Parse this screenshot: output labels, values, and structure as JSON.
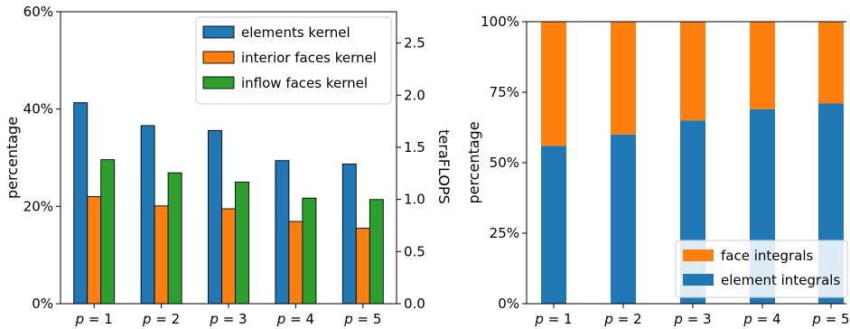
{
  "chart_data": [
    {
      "type": "bar",
      "categories": [
        "p = 1",
        "p = 2",
        "p = 3",
        "p = 4",
        "p = 5"
      ],
      "ylabel": "percentage",
      "ylim": [
        0,
        60
      ],
      "yticks": [
        "0%",
        "20%",
        "40%",
        "60%"
      ],
      "y2label": "teraFLOPS",
      "y2lim": [
        0.0,
        2.8
      ],
      "y2ticks": [
        "0.0",
        "0.5",
        "1.0",
        "1.5",
        "2.0",
        "2.5"
      ],
      "legend_position": "top-right",
      "series": [
        {
          "name": "elements kernel",
          "color": "#1f77b4",
          "values": [
            41.3,
            36.6,
            35.6,
            29.4,
            28.7
          ]
        },
        {
          "name": "interior faces kernel",
          "color": "#ff7f0e",
          "values": [
            22.0,
            20.1,
            19.5,
            16.9,
            15.5
          ]
        },
        {
          "name": "inflow faces kernel",
          "color": "#2ca02c",
          "values": [
            29.6,
            26.9,
            25.0,
            21.7,
            21.4
          ]
        }
      ]
    },
    {
      "type": "bar",
      "stacked": true,
      "categories": [
        "p = 1",
        "p = 2",
        "p = 3",
        "p = 4",
        "p = 5"
      ],
      "ylabel": "percentage",
      "ylim": [
        0,
        100
      ],
      "yticks": [
        "0%",
        "25%",
        "50%",
        "75%",
        "100%"
      ],
      "legend_position": "bottom-right",
      "series": [
        {
          "name": "element integrals",
          "color": "#1f77b4",
          "values": [
            56,
            60,
            65,
            69,
            71
          ]
        },
        {
          "name": "face integrals",
          "color": "#ff7f0e",
          "values": [
            44,
            40,
            35,
            31,
            29
          ]
        }
      ]
    }
  ]
}
